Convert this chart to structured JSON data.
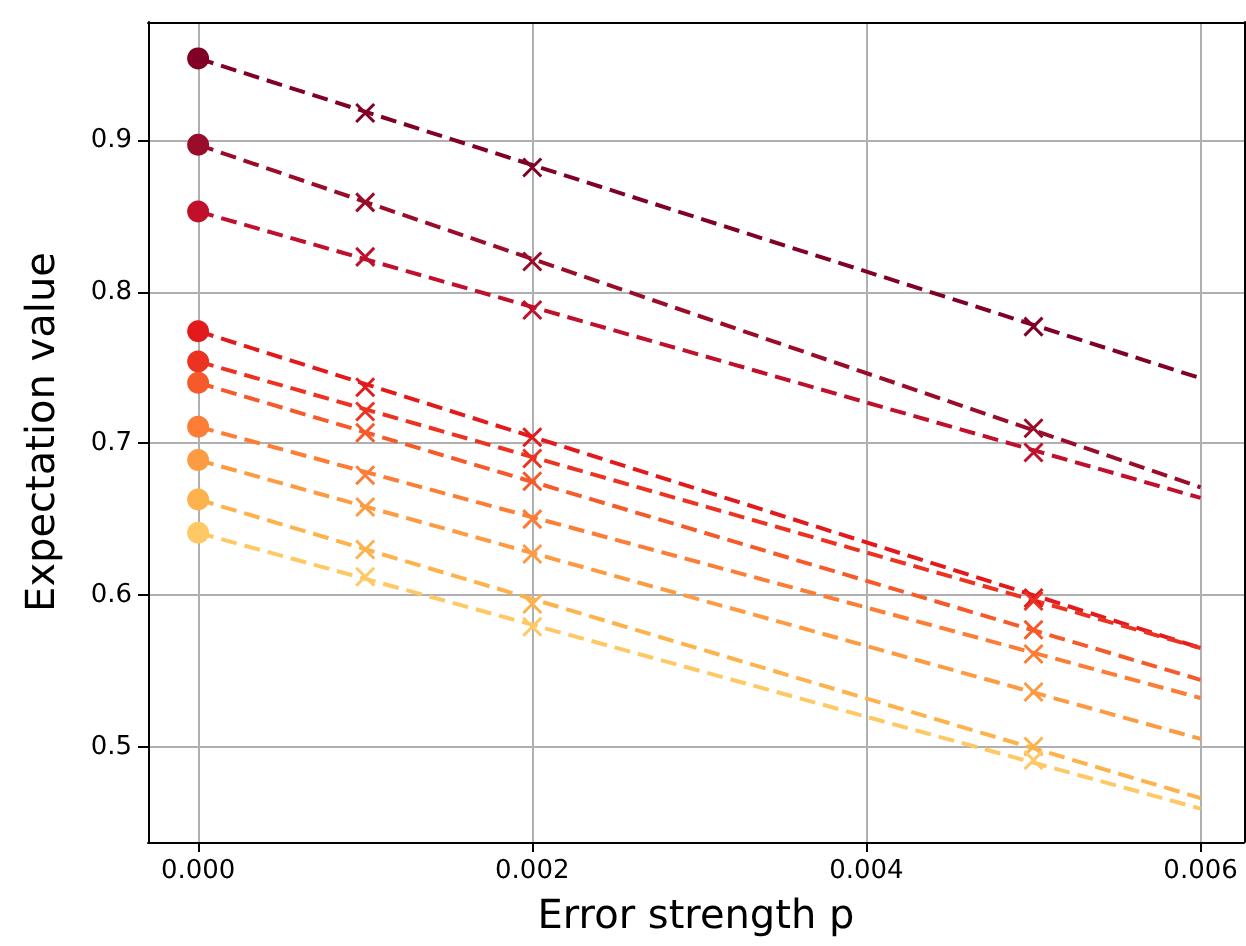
{
  "chart_data": {
    "type": "scatter",
    "xlabel": "Error strength p",
    "ylabel": "Expectation value",
    "xlim": [
      -0.0003,
      0.00626
    ],
    "ylim": [
      0.437,
      0.978
    ],
    "xticks": [
      {
        "value": 0,
        "label": "0.000"
      },
      {
        "value": 0.002,
        "label": "0.002"
      },
      {
        "value": 0.004,
        "label": "0.004"
      },
      {
        "value": 0.006,
        "label": "0.006"
      }
    ],
    "yticks": [
      0.5,
      0.6,
      0.7,
      0.8,
      0.9
    ],
    "grid": true,
    "series": [
      {
        "type": "line",
        "line_style": "dashed",
        "marker": "none",
        "color": "#800026",
        "x": [
          0,
          0.006
        ],
        "values": [
          0.954,
          0.743
        ]
      },
      {
        "type": "line",
        "line_style": "dashed",
        "marker": "none",
        "color": "#990c2a",
        "x": [
          0,
          0.006
        ],
        "values": [
          0.897,
          0.671
        ]
      },
      {
        "type": "line",
        "line_style": "dashed",
        "marker": "none",
        "color": "#c0102b",
        "x": [
          0,
          0.006
        ],
        "values": [
          0.853,
          0.664
        ]
      },
      {
        "type": "line",
        "line_style": "dashed",
        "marker": "none",
        "color": "#e31a1c",
        "x": [
          0,
          0.006
        ],
        "values": [
          0.774,
          0.565
        ]
      },
      {
        "type": "line",
        "line_style": "dashed",
        "marker": "none",
        "color": "#ec3322",
        "x": [
          0,
          0.006
        ],
        "values": [
          0.754,
          0.565
        ]
      },
      {
        "type": "line",
        "line_style": "dashed",
        "marker": "none",
        "color": "#f75a2a",
        "x": [
          0,
          0.006
        ],
        "values": [
          0.74,
          0.544
        ]
      },
      {
        "type": "line",
        "line_style": "dashed",
        "marker": "none",
        "color": "#fc7d35",
        "x": [
          0,
          0.006
        ],
        "values": [
          0.711,
          0.532
        ]
      },
      {
        "type": "line",
        "line_style": "dashed",
        "marker": "none",
        "color": "#fd9b43",
        "x": [
          0,
          0.006
        ],
        "values": [
          0.689,
          0.505
        ]
      },
      {
        "type": "line",
        "line_style": "dashed",
        "marker": "none",
        "color": "#feb24c",
        "x": [
          0,
          0.006
        ],
        "values": [
          0.663,
          0.466
        ]
      },
      {
        "type": "line",
        "line_style": "dashed",
        "marker": "none",
        "color": "#fec965",
        "x": [
          0,
          0.006
        ],
        "values": [
          0.641,
          0.459
        ]
      },
      {
        "marker": "circle",
        "color": "#800026",
        "x": [
          0
        ],
        "values": [
          0.954
        ]
      },
      {
        "marker": "circle",
        "color": "#990c2a",
        "x": [
          0
        ],
        "values": [
          0.897
        ]
      },
      {
        "marker": "circle",
        "color": "#c0102b",
        "x": [
          0
        ],
        "values": [
          0.853
        ]
      },
      {
        "marker": "circle",
        "color": "#e31a1c",
        "x": [
          0
        ],
        "values": [
          0.774
        ]
      },
      {
        "marker": "circle",
        "color": "#ec3322",
        "x": [
          0
        ],
        "values": [
          0.754
        ]
      },
      {
        "marker": "circle",
        "color": "#f75a2a",
        "x": [
          0
        ],
        "values": [
          0.74
        ]
      },
      {
        "marker": "circle",
        "color": "#fc7d35",
        "x": [
          0
        ],
        "values": [
          0.711
        ]
      },
      {
        "marker": "circle",
        "color": "#fd9b43",
        "x": [
          0
        ],
        "values": [
          0.689
        ]
      },
      {
        "marker": "circle",
        "color": "#feb24c",
        "x": [
          0
        ],
        "values": [
          0.663
        ]
      },
      {
        "marker": "circle",
        "color": "#fec965",
        "x": [
          0
        ],
        "values": [
          0.641
        ]
      },
      {
        "marker": "cross",
        "color": "#800026",
        "x": [
          0.001,
          0.002,
          0.005
        ],
        "values": [
          0.918,
          0.882,
          0.777
        ]
      },
      {
        "marker": "cross",
        "color": "#990c2a",
        "x": [
          0.001,
          0.002,
          0.005
        ],
        "values": [
          0.859,
          0.82,
          0.71
        ]
      },
      {
        "marker": "cross",
        "color": "#c0102b",
        "x": [
          0.001,
          0.002,
          0.005
        ],
        "values": [
          0.823,
          0.788,
          0.694
        ]
      },
      {
        "marker": "cross",
        "color": "#e31a1c",
        "x": [
          0.001,
          0.002,
          0.005
        ],
        "values": [
          0.737,
          0.704,
          0.598
        ]
      },
      {
        "marker": "cross",
        "color": "#ec3322",
        "x": [
          0.001,
          0.002,
          0.005
        ],
        "values": [
          0.721,
          0.69,
          0.596
        ]
      },
      {
        "marker": "cross",
        "color": "#f75a2a",
        "x": [
          0.001,
          0.002,
          0.005
        ],
        "values": [
          0.707,
          0.675,
          0.577
        ]
      },
      {
        "marker": "cross",
        "color": "#fc7d35",
        "x": [
          0.001,
          0.002,
          0.005
        ],
        "values": [
          0.679,
          0.65,
          0.561
        ]
      },
      {
        "marker": "cross",
        "color": "#fd9b43",
        "x": [
          0.001,
          0.002,
          0.005
        ],
        "values": [
          0.658,
          0.627,
          0.536
        ]
      },
      {
        "marker": "cross",
        "color": "#feb24c",
        "x": [
          0.001,
          0.002,
          0.005
        ],
        "values": [
          0.63,
          0.594,
          0.5
        ]
      },
      {
        "marker": "cross",
        "color": "#fec965",
        "x": [
          0.001,
          0.002,
          0.005
        ],
        "values": [
          0.612,
          0.579,
          0.491
        ]
      }
    ]
  }
}
